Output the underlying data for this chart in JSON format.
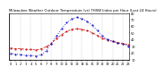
{
  "title": "Milwaukee Weather Outdoor Temperature (vs) THSW Index per Hour (Last 24 Hours)",
  "hours": [
    0,
    1,
    2,
    3,
    4,
    5,
    6,
    7,
    8,
    9,
    10,
    11,
    12,
    13,
    14,
    15,
    16,
    17,
    18,
    19,
    20,
    21,
    22,
    23
  ],
  "temp": [
    28,
    27,
    27,
    26,
    26,
    25,
    27,
    30,
    35,
    42,
    48,
    53,
    56,
    57,
    56,
    54,
    51,
    47,
    43,
    40,
    38,
    36,
    35,
    33
  ],
  "thsw": [
    20,
    19,
    18,
    17,
    17,
    16,
    18,
    24,
    35,
    46,
    57,
    66,
    72,
    74,
    72,
    68,
    62,
    54,
    46,
    41,
    38,
    36,
    34,
    31
  ],
  "temp_color": "#cc0000",
  "thsw_color": "#0000cc",
  "grid_color": "#888888",
  "bg_color": "#ffffff",
  "ylim": [
    10,
    80
  ],
  "yticks": [
    10,
    20,
    30,
    40,
    50,
    60,
    70,
    80
  ],
  "ytick_labels": [
    "10",
    "20",
    "30",
    "40",
    "50",
    "60",
    "70",
    "80"
  ],
  "grid_hours": [
    0,
    2,
    4,
    6,
    8,
    10,
    12,
    14,
    16,
    18,
    20,
    22
  ],
  "title_fontsize": 2.8,
  "tick_fontsize": 2.5,
  "line_lw": 0.5,
  "marker_size": 1.0
}
